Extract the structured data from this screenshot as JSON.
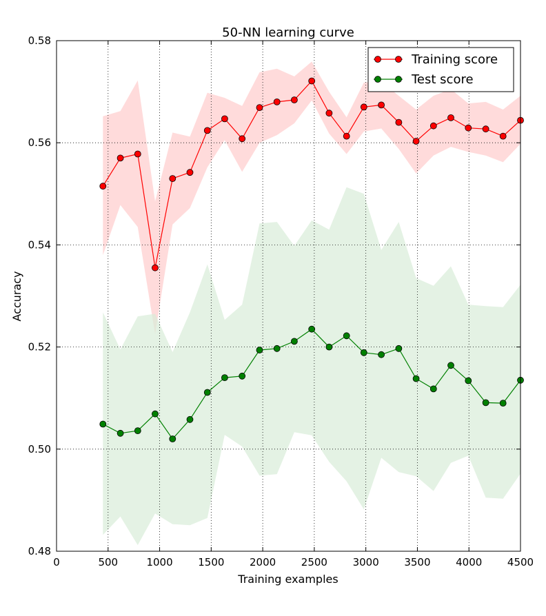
{
  "chart_data": {
    "type": "line",
    "title": "50-NN learning curve",
    "xlabel": "Training examples",
    "ylabel": "Accuracy",
    "xlim": [
      0,
      4500
    ],
    "ylim": [
      0.48,
      0.58
    ],
    "xticks": [
      0,
      500,
      1000,
      1500,
      2000,
      2500,
      3000,
      3500,
      4000,
      4500
    ],
    "xtick_labels": [
      "0",
      "500",
      "1000",
      "1500",
      "2000",
      "2500",
      "3000",
      "3500",
      "4000",
      "4500"
    ],
    "yticks": [
      0.48,
      0.5,
      0.52,
      0.54,
      0.56,
      0.58
    ],
    "ytick_labels": [
      "0.48",
      "0.50",
      "0.52",
      "0.54",
      "0.56",
      "0.58"
    ],
    "grid": true,
    "legend_position": "top-right",
    "x": [
      450,
      619,
      788,
      956,
      1125,
      1294,
      1463,
      1631,
      1800,
      1969,
      2138,
      2306,
      2475,
      2644,
      2813,
      2981,
      3150,
      3319,
      3488,
      3656,
      3825,
      3994,
      4163,
      4331,
      4500
    ],
    "series": [
      {
        "name": "Training score",
        "color": "#ff0000",
        "band_color": "#ffcccc",
        "values": [
          0.5515,
          0.557,
          0.5578,
          0.5355,
          0.553,
          0.5542,
          0.5624,
          0.5647,
          0.5608,
          0.5669,
          0.568,
          0.5684,
          0.5721,
          0.5658,
          0.5613,
          0.567,
          0.5674,
          0.564,
          0.5603,
          0.5633,
          0.5649,
          0.5629,
          0.5627,
          0.5613,
          0.5644
        ],
        "upper": [
          0.5652,
          0.5662,
          0.5722,
          0.5485,
          0.562,
          0.5612,
          0.5698,
          0.5688,
          0.5672,
          0.5738,
          0.5745,
          0.573,
          0.5759,
          0.57,
          0.565,
          0.5718,
          0.572,
          0.5692,
          0.5665,
          0.5692,
          0.5705,
          0.5677,
          0.568,
          0.5665,
          0.5692
        ],
        "lower": [
          0.538,
          0.5478,
          0.5435,
          0.5225,
          0.544,
          0.5472,
          0.5552,
          0.5605,
          0.5543,
          0.56,
          0.5615,
          0.5638,
          0.5683,
          0.5618,
          0.5578,
          0.5622,
          0.5628,
          0.5588,
          0.554,
          0.5575,
          0.5592,
          0.5582,
          0.5575,
          0.5562,
          0.5598
        ]
      },
      {
        "name": "Test score",
        "color": "#008000",
        "band_color": "#d8ecd8",
        "values": [
          0.5049,
          0.5031,
          0.5036,
          0.5069,
          0.502,
          0.5058,
          0.5111,
          0.514,
          0.5143,
          0.5194,
          0.5197,
          0.5211,
          0.5235,
          0.52,
          0.5222,
          0.5189,
          0.5185,
          0.5197,
          0.5138,
          0.5118,
          0.5164,
          0.5134,
          0.5091,
          0.509,
          0.5135
        ],
        "upper": [
          0.5268,
          0.5195,
          0.526,
          0.5265,
          0.519,
          0.5268,
          0.5362,
          0.5253,
          0.5283,
          0.5442,
          0.5445,
          0.5398,
          0.5448,
          0.543,
          0.5513,
          0.55,
          0.539,
          0.5445,
          0.5335,
          0.532,
          0.5358,
          0.5283,
          0.528,
          0.5278,
          0.5322
        ],
        "lower": [
          0.4832,
          0.4868,
          0.4812,
          0.4874,
          0.4853,
          0.4851,
          0.4865,
          0.5028,
          0.5005,
          0.4948,
          0.4951,
          0.5033,
          0.5027,
          0.4975,
          0.4937,
          0.4882,
          0.4983,
          0.4955,
          0.4947,
          0.4918,
          0.4973,
          0.4987,
          0.4905,
          0.4903,
          0.4952
        ]
      }
    ]
  }
}
